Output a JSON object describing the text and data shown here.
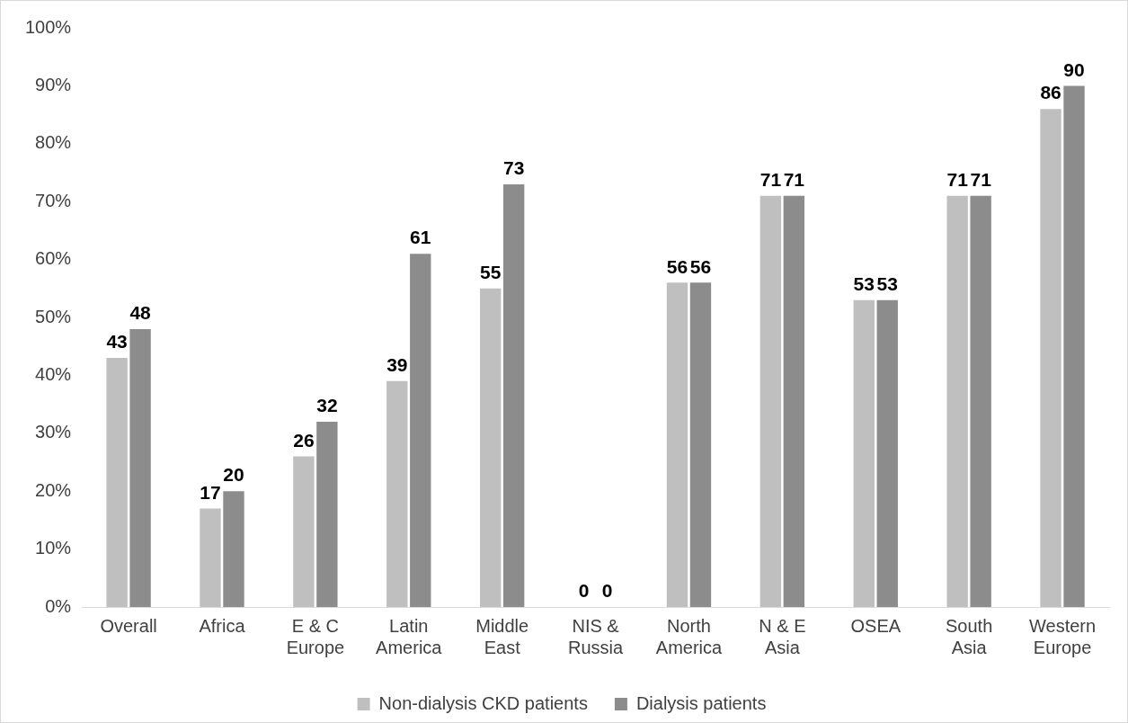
{
  "chart_data": {
    "type": "bar",
    "categories": [
      "Overall",
      "Africa",
      "E & C Europe",
      "Latin America",
      "Middle East",
      "NIS & Russia",
      "North America",
      "N & E Asia",
      "OSEA",
      "South Asia",
      "Western Europe"
    ],
    "series": [
      {
        "name": "Non-dialysis CKD patients",
        "color": "#bfbfbf",
        "values": [
          43,
          17,
          26,
          39,
          55,
          0,
          56,
          71,
          53,
          71,
          86
        ]
      },
      {
        "name": "Dialysis patients",
        "color": "#8c8c8c",
        "values": [
          48,
          20,
          32,
          61,
          73,
          0,
          56,
          71,
          53,
          71,
          90
        ]
      }
    ],
    "ylim": [
      0,
      100
    ],
    "yticks": [
      {
        "value": 0,
        "label": "0%"
      },
      {
        "value": 10,
        "label": "10%"
      },
      {
        "value": 20,
        "label": "20%"
      },
      {
        "value": 30,
        "label": "30%"
      },
      {
        "value": 40,
        "label": "40%"
      },
      {
        "value": 50,
        "label": "50%"
      },
      {
        "value": 60,
        "label": "60%"
      },
      {
        "value": 70,
        "label": "70%"
      },
      {
        "value": 80,
        "label": "80%"
      },
      {
        "value": 90,
        "label": "90%"
      },
      {
        "value": 100,
        "label": "100%"
      }
    ],
    "grid": false,
    "legend": "bottom",
    "data_labels": true
  }
}
